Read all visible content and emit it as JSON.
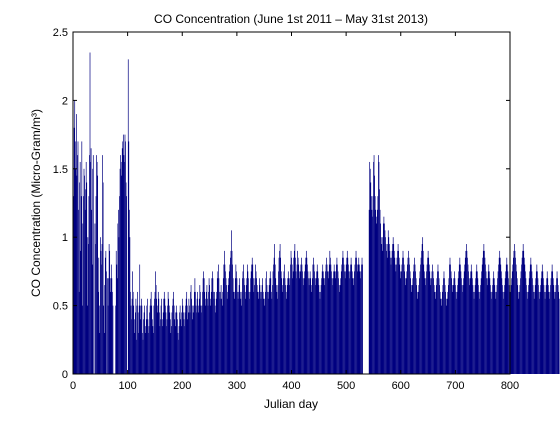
{
  "chart_data": {
    "type": "bar",
    "title": "CO Concentration (June 1st 2011 – May 31st 2013)",
    "xlabel": "Julian day",
    "ylabel": "CO Concentration  (Micro-Gram/m³)",
    "xlim": [
      0,
      800
    ],
    "ylim": [
      0,
      2.5
    ],
    "xticks": [
      0,
      100,
      200,
      300,
      400,
      500,
      600,
      700,
      800
    ],
    "yticks": [
      0,
      0.5,
      1,
      1.5,
      2,
      2.5
    ],
    "xtick_labels": [
      "0",
      "100",
      "200",
      "300",
      "400",
      "500",
      "600",
      "700",
      "800"
    ],
    "ytick_labels": [
      "0",
      "0.5",
      "1",
      "1.5",
      "2",
      "2.5"
    ],
    "grid": false,
    "bar_color": "#000080",
    "x_start": 1,
    "series": [
      {
        "values": [
          1.3,
          1.8,
          2.0,
          1.7,
          1.5,
          1.9,
          1.45,
          1.6,
          1.7,
          1.2,
          0.6,
          1.4,
          1.55,
          0.9,
          1.3,
          1.7,
          0.5,
          1.1,
          1.3,
          1.5,
          1.45,
          1.2,
          1.35,
          1.55,
          1.4,
          0.5,
          1.0,
          0.95,
          1.3,
          1.6,
          2.35,
          1.55,
          1.65,
          1.2,
          0.8,
          1.5,
          1.6,
          0.0,
          0.0,
          1.1,
          0.95,
          1.3,
          1.6,
          1.55,
          1.45,
          0.6,
          0.85,
          0.5,
          0.3,
          1.0,
          0.9,
          0.8,
          0.95,
          1.6,
          1.4,
          0.5,
          0.3,
          0.65,
          0.85,
          0.9,
          0.75,
          0.0,
          0.7,
          0.5,
          0.7,
          0.95,
          0.9,
          0.7,
          0.6,
          0.8,
          0.7,
          0.6,
          0.5,
          0.0,
          0.0,
          0.0,
          0.0,
          0.5,
          0.9,
          0.8,
          0.7,
          1.1,
          1.2,
          1.0,
          1.3,
          1.5,
          1.6,
          1.55,
          1.45,
          1.65,
          1.7,
          1.75,
          1.6,
          1.55,
          1.75,
          1.7,
          1.4,
          1.3,
          0.0,
          0.0,
          2.3,
          1.7,
          1.2,
          1.0,
          0.6,
          0.5,
          0.4,
          0.55,
          0.75,
          0.6,
          0.5,
          0.3,
          0.4,
          0.45,
          0.55,
          0.25,
          0.5,
          0.6,
          0.45,
          0.3,
          0.5,
          0.8,
          0.5,
          0.4,
          0.55,
          0.5,
          0.3,
          0.25,
          0.4,
          0.45,
          0.5,
          0.35,
          0.3,
          0.4,
          0.5,
          0.55,
          0.4,
          0.3,
          0.35,
          0.45,
          0.5,
          0.55,
          0.6,
          0.5,
          0.4,
          0.35,
          0.3,
          0.5,
          0.55,
          0.6,
          0.75,
          0.65,
          0.55,
          0.45,
          0.5,
          0.6,
          0.55,
          0.45,
          0.35,
          0.4,
          0.5,
          0.55,
          0.4,
          0.35,
          0.45,
          0.55,
          0.6,
          0.55,
          0.5,
          0.45,
          0.35,
          0.4,
          0.5,
          0.6,
          0.55,
          0.5,
          0.45,
          0.4,
          0.3,
          0.35,
          0.45,
          0.5,
          0.55,
          0.6,
          0.5,
          0.4,
          0.35,
          0.45,
          0.5,
          0.45,
          0.4,
          0.3,
          0.25,
          0.35,
          0.45,
          0.5,
          0.4,
          0.35,
          0.45,
          0.55,
          0.5,
          0.45,
          0.4,
          0.35,
          0.45,
          0.5,
          0.55,
          0.6,
          0.5,
          0.4,
          0.45,
          0.55,
          0.5,
          0.45,
          0.6,
          0.65,
          0.55,
          0.5,
          0.4,
          0.45,
          0.5,
          0.6,
          0.7,
          0.6,
          0.5,
          0.45,
          0.55,
          0.6,
          0.5,
          0.45,
          0.55,
          0.65,
          0.6,
          0.5,
          0.45,
          0.5,
          0.6,
          0.7,
          0.75,
          0.7,
          0.6,
          0.55,
          0.5,
          0.6,
          0.65,
          0.55,
          0.5,
          0.6,
          0.7,
          0.65,
          0.55,
          0.5,
          0.6,
          0.7,
          0.75,
          0.7,
          0.6,
          0.55,
          0.6,
          0.5,
          0.45,
          0.55,
          0.6,
          0.7,
          0.75,
          0.8,
          0.7,
          0.6,
          0.55,
          0.6,
          0.65,
          0.55,
          0.5,
          0.6,
          0.7,
          0.8,
          0.9,
          0.8,
          0.75,
          0.7,
          0.65,
          0.55,
          0.6,
          0.65,
          0.7,
          0.75,
          0.8,
          0.85,
          0.9,
          1.05,
          0.9,
          0.8,
          0.7,
          0.6,
          0.55,
          0.6,
          0.7,
          0.8,
          0.75,
          0.7,
          0.6,
          0.55,
          0.6,
          0.65,
          0.7,
          0.6,
          0.55,
          0.5,
          0.6,
          0.7,
          0.75,
          0.8,
          0.7,
          0.65,
          0.6,
          0.55,
          0.65,
          0.7,
          0.8,
          0.75,
          0.7,
          0.6,
          0.55,
          0.6,
          0.7,
          0.75,
          0.8,
          0.85,
          0.8,
          0.7,
          0.6,
          0.65,
          0.7,
          0.8,
          0.75,
          0.7,
          0.65,
          0.6,
          0.55,
          0.6,
          0.7,
          0.65,
          0.6,
          0.55,
          0.6,
          0.65,
          0.7,
          0.6,
          0.55,
          0.5,
          0.55,
          0.6,
          0.7,
          0.75,
          0.65,
          0.6,
          0.55,
          0.6,
          0.65,
          0.7,
          0.75,
          0.7,
          0.6,
          0.55,
          0.65,
          0.75,
          0.8,
          0.85,
          0.95,
          0.8,
          0.7,
          0.65,
          0.6,
          0.55,
          0.65,
          0.75,
          0.85,
          0.9,
          0.95,
          0.85,
          0.75,
          0.7,
          0.65,
          0.6,
          0.7,
          0.75,
          0.8,
          0.7,
          0.65,
          0.6,
          0.55,
          0.65,
          0.7,
          0.75,
          0.7,
          0.65,
          0.7,
          0.8,
          0.9,
          0.85,
          0.8,
          0.7,
          0.75,
          0.85,
          0.9,
          0.95,
          0.85,
          0.75,
          0.7,
          0.8,
          0.9,
          0.85,
          0.8,
          0.75,
          0.7,
          0.75,
          0.8,
          0.85,
          0.8,
          0.75,
          0.7,
          0.65,
          0.7,
          0.75,
          0.8,
          0.85,
          0.9,
          0.85,
          0.8,
          0.75,
          0.7,
          0.65,
          0.7,
          0.75,
          0.7,
          0.65,
          0.6,
          0.7,
          0.8,
          0.85,
          0.8,
          0.75,
          0.7,
          0.65,
          0.7,
          0.75,
          0.8,
          0.75,
          0.7,
          0.65,
          0.6,
          0.55,
          0.6,
          0.65,
          0.7,
          0.75,
          0.8,
          0.75,
          0.7,
          0.65,
          0.7,
          0.75,
          0.8,
          0.85,
          0.8,
          0.75,
          0.7,
          0.75,
          0.8,
          0.9,
          0.85,
          0.8,
          0.75,
          0.7,
          0.65,
          0.7,
          0.75,
          0.8,
          0.75,
          0.7,
          0.75,
          0.8,
          0.85,
          0.8,
          0.75,
          0.7,
          0.65,
          0.6,
          0.65,
          0.7,
          0.75,
          0.8,
          0.85,
          0.9,
          0.85,
          0.8,
          0.75,
          0.7,
          0.75,
          0.8,
          0.85,
          0.9,
          0.85,
          0.8,
          0.75,
          0.7,
          0.75,
          0.8,
          0.85,
          0.8,
          0.75,
          0.7,
          0.65,
          0.7,
          0.75,
          0.8,
          0.85,
          0.9,
          0.85,
          0.8,
          0.75,
          0.8,
          0.85,
          0.8,
          0.75,
          0.7,
          0.75,
          0.8,
          0.85,
          0.8,
          0.0,
          0.0,
          0.0,
          0.0,
          0.0,
          0.0,
          0.0,
          0.0,
          0.0,
          0.0,
          0.0,
          1.2,
          1.55,
          1.5,
          1.4,
          1.3,
          1.2,
          1.15,
          1.3,
          1.55,
          1.6,
          1.45,
          1.3,
          1.2,
          1.15,
          1.1,
          1.2,
          1.3,
          1.6,
          1.55,
          1.35,
          1.2,
          1.1,
          1.0,
          0.95,
          0.9,
          1.0,
          1.1,
          1.15,
          1.1,
          1.05,
          1.0,
          0.95,
          0.9,
          0.85,
          0.95,
          1.05,
          1.0,
          0.95,
          0.9,
          0.85,
          0.8,
          0.85,
          0.9,
          0.95,
          1.0,
          0.95,
          0.9,
          0.85,
          0.8,
          0.75,
          0.8,
          0.85,
          0.9,
          0.95,
          0.9,
          0.85,
          0.8,
          0.75,
          0.7,
          0.75,
          0.8,
          0.85,
          0.9,
          0.85,
          0.8,
          0.75,
          0.7,
          0.65,
          0.7,
          0.75,
          0.8,
          0.85,
          0.9,
          0.85,
          0.8,
          0.75,
          0.7,
          0.65,
          0.6,
          0.65,
          0.7,
          0.75,
          0.8,
          0.85,
          0.8,
          0.75,
          0.7,
          0.65,
          0.6,
          0.55,
          0.6,
          0.65,
          0.7,
          0.75,
          0.8,
          0.85,
          0.9,
          0.95,
          1.0,
          0.9,
          0.8,
          0.75,
          0.7,
          0.65,
          0.7,
          0.75,
          0.8,
          0.85,
          0.9,
          0.85,
          0.8,
          0.75,
          0.7,
          0.65,
          0.7,
          0.75,
          0.8,
          0.75,
          0.7,
          0.65,
          0.6,
          0.55,
          0.6,
          0.65,
          0.7,
          0.75,
          0.8,
          0.75,
          0.7,
          0.65,
          0.6,
          0.55,
          0.5,
          0.55,
          0.6,
          0.65,
          0.7,
          0.75,
          0.7,
          0.65,
          0.6,
          0.55,
          0.5,
          0.55,
          0.6,
          0.65,
          0.7,
          0.8,
          0.85,
          0.8,
          0.75,
          0.7,
          0.65,
          0.6,
          0.65,
          0.7,
          0.75,
          0.7,
          0.65,
          0.6,
          0.55,
          0.6,
          0.65,
          0.7,
          0.75,
          0.8,
          0.85,
          0.8,
          0.75,
          0.7,
          0.65,
          0.6,
          0.65,
          0.7,
          0.75,
          0.8,
          0.85,
          0.9,
          0.95,
          0.9,
          0.85,
          0.8,
          0.75,
          0.7,
          0.65,
          0.7,
          0.75,
          0.8,
          0.75,
          0.7,
          0.65,
          0.6,
          0.55,
          0.6,
          0.65,
          0.7,
          0.75,
          0.8,
          0.75,
          0.7,
          0.65,
          0.6,
          0.55,
          0.6,
          0.65,
          0.7,
          0.75,
          0.8,
          0.85,
          0.9,
          0.95,
          0.9,
          0.85,
          0.8,
          0.75,
          0.7,
          0.65,
          0.7,
          0.75,
          0.8,
          0.75,
          0.7,
          0.65,
          0.6,
          0.55,
          0.6,
          0.65,
          0.7,
          0.75,
          0.7,
          0.65,
          0.6,
          0.55,
          0.6,
          0.65,
          0.7,
          0.75,
          0.8,
          0.85,
          0.9,
          0.85,
          0.8,
          0.75,
          0.7,
          0.65,
          0.6,
          0.55,
          0.6,
          0.65,
          0.7,
          0.75,
          0.8,
          0.85,
          0.8,
          0.75,
          0.7,
          0.65,
          0.6,
          0.55,
          0.6,
          0.65,
          0.7,
          0.75,
          0.8,
          0.85,
          0.9,
          0.95,
          0.9,
          0.85,
          0.8,
          0.75,
          0.7,
          0.65,
          0.6,
          0.55,
          0.6,
          0.65,
          0.7,
          0.75,
          0.8,
          0.85,
          0.9,
          0.95,
          0.9,
          0.85,
          0.8,
          0.75,
          0.7,
          0.65,
          0.6,
          0.55,
          0.6,
          0.65,
          0.7,
          0.75,
          0.8,
          0.85,
          0.8,
          0.75,
          0.7,
          0.65,
          0.6,
          0.55,
          0.6,
          0.65,
          0.7,
          0.75,
          0.8,
          0.75,
          0.7,
          0.65,
          0.6,
          0.55,
          0.6,
          0.65,
          0.7,
          0.75,
          0.8,
          0.75,
          0.7,
          0.65,
          0.6,
          0.55,
          0.6,
          0.65,
          0.7,
          0.75,
          0.7,
          0.65,
          0.6,
          0.55,
          0.6,
          0.65,
          0.7,
          0.75,
          0.8,
          0.75,
          0.7,
          0.65,
          0.6,
          0.55,
          0.6,
          0.65,
          0.7,
          0.75,
          0.7,
          0.65,
          0.6,
          0.55
        ]
      }
    ]
  }
}
